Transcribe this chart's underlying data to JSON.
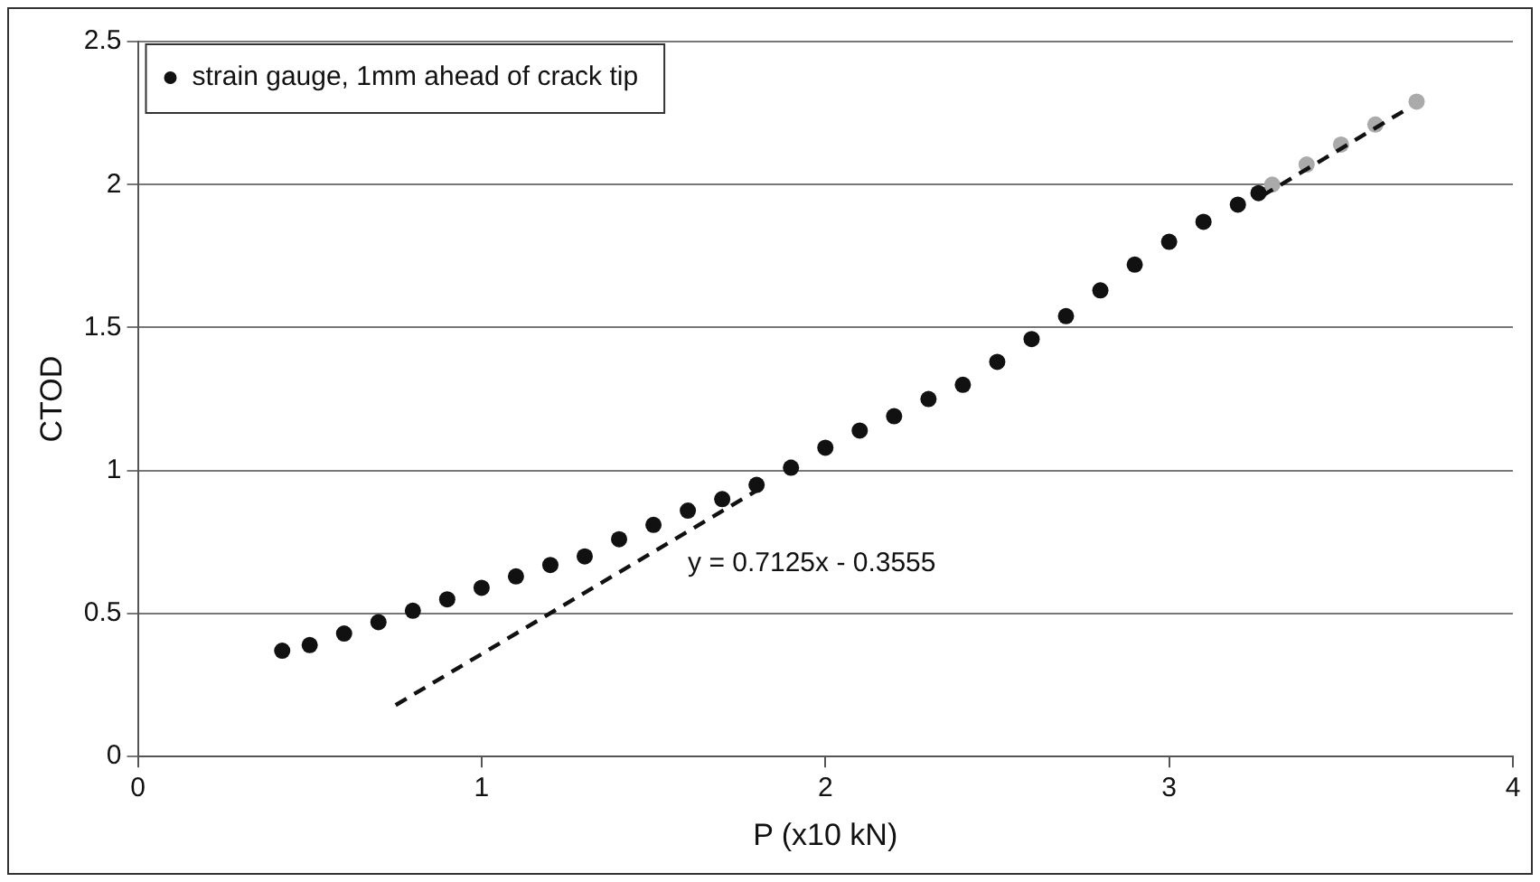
{
  "chart_data": {
    "type": "scatter",
    "xlabel": "P (x10 kN)",
    "ylabel": "CTOD",
    "xlim": [
      0,
      4
    ],
    "xticks": [
      0,
      1,
      2,
      3,
      4
    ],
    "ylim": [
      0,
      2.5
    ],
    "yticks": [
      0,
      0.5,
      1,
      1.5,
      2,
      2.5
    ],
    "grid": "y",
    "legend": "top left",
    "marker": "circle",
    "series": [
      {
        "name": "strain gauge, 1mm ahead of crack tip",
        "color": "#111111",
        "x": [
          0.42,
          0.5,
          0.6,
          0.7,
          0.8,
          0.9,
          1.0,
          1.1,
          1.2,
          1.3,
          1.4,
          1.5,
          1.6,
          1.7,
          1.8,
          1.9,
          2.0,
          2.1,
          2.2,
          2.3,
          2.4,
          2.5,
          2.6,
          2.7,
          2.8,
          2.9,
          3.0,
          3.1,
          3.2,
          3.26
        ],
        "values": [
          0.37,
          0.39,
          0.43,
          0.47,
          0.51,
          0.55,
          0.59,
          0.63,
          0.67,
          0.7,
          0.76,
          0.81,
          0.86,
          0.9,
          0.95,
          1.01,
          1.08,
          1.14,
          1.19,
          1.25,
          1.3,
          1.38,
          1.46,
          1.54,
          1.63,
          1.72,
          1.8,
          1.87,
          1.93,
          1.97
        ]
      },
      {
        "color": "#aaaaaa",
        "x": [
          3.3,
          3.4,
          3.5,
          3.6,
          3.72
        ],
        "values": [
          2.0,
          2.07,
          2.14,
          2.21,
          2.29
        ]
      },
      {
        "type": "line",
        "line_style": "dashed",
        "marker": "none",
        "color": "#111111",
        "x": [
          0.75,
          1.8
        ],
        "values": [
          0.18,
          0.93
        ]
      },
      {
        "type": "line",
        "line_style": "dashed",
        "marker": "none",
        "color": "#111111",
        "x": [
          3.27,
          3.7
        ],
        "values": [
          1.96,
          2.27
        ]
      }
    ],
    "annotations": [
      "y = 0.7125x - 0.3555"
    ]
  }
}
